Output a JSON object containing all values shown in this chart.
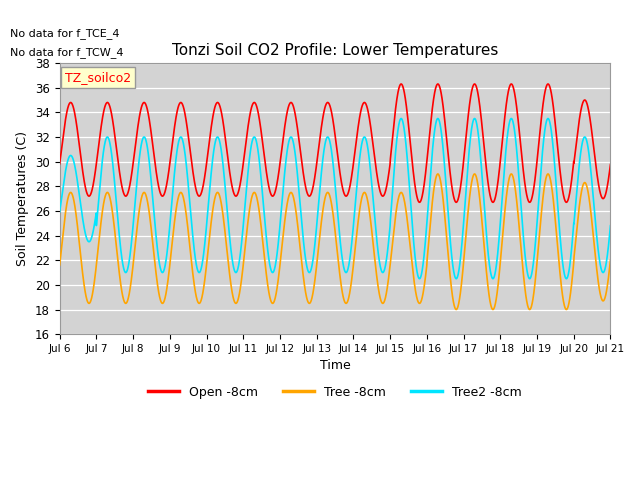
{
  "title": "Tonzi Soil CO2 Profile: Lower Temperatures",
  "xlabel": "Time",
  "ylabel": "Soil Temperatures (C)",
  "ylim": [
    16,
    38
  ],
  "yticks": [
    16,
    18,
    20,
    22,
    24,
    26,
    28,
    30,
    32,
    34,
    36,
    38
  ],
  "annotations": [
    "No data for f_TCE_4",
    "No data for f_TCW_4"
  ],
  "legend_label": "TZ_soilco2",
  "line_labels": [
    "Open -8cm",
    "Tree -8cm",
    "Tree2 -8cm"
  ],
  "line_colors": [
    "#ff0000",
    "#ffa500",
    "#00e5ff"
  ],
  "background_color": "#d3d3d3",
  "xtick_labels": [
    "Jul 6",
    "Jul 7",
    "Jul 8",
    "Jul 9",
    "Jul 10",
    "Jul 11",
    "Jul 12",
    "Jul 13",
    "Jul 14",
    "Jul 15",
    "Jul 16",
    "Jul 17",
    "Jul 18",
    "Jul 19",
    "Jul 20",
    "Jul 21"
  ],
  "n_days": 15,
  "points_per_day": 200
}
